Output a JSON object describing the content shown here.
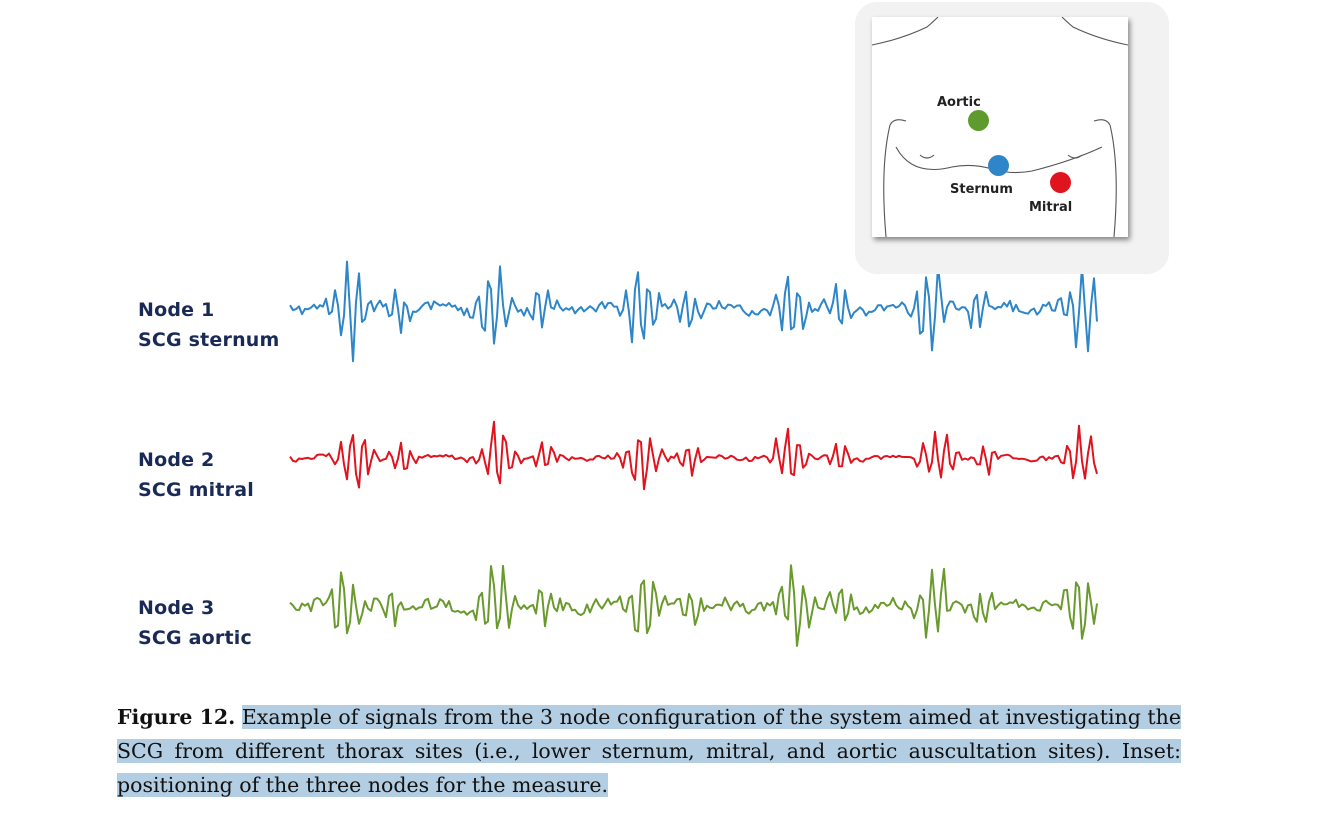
{
  "figure": {
    "nodes": [
      {
        "title": "Node 1",
        "subtitle": "SCG sternum",
        "color": "#2e86c8"
      },
      {
        "title": "Node 2",
        "subtitle": "SCG mitral",
        "color": "#e0141e"
      },
      {
        "title": "Node 3",
        "subtitle": "SCG aortic",
        "color": "#6a9a2e"
      }
    ],
    "inset": {
      "aortic": {
        "label": "Aortic",
        "color": "#5e9a2e"
      },
      "sternum": {
        "label": "Sternum",
        "color": "#2e86c8"
      },
      "mitral": {
        "label": "Mitral",
        "color": "#e0141e"
      }
    }
  },
  "caption": {
    "figure_number": "Figure 12.",
    "text": "Example of signals from the 3 node configuration of the system aimed at investigating the SCG from different thorax sites (i.e., lower sternum, mitral, and aortic auscultation sites). Inset: positioning of the three nodes for the measure."
  }
}
